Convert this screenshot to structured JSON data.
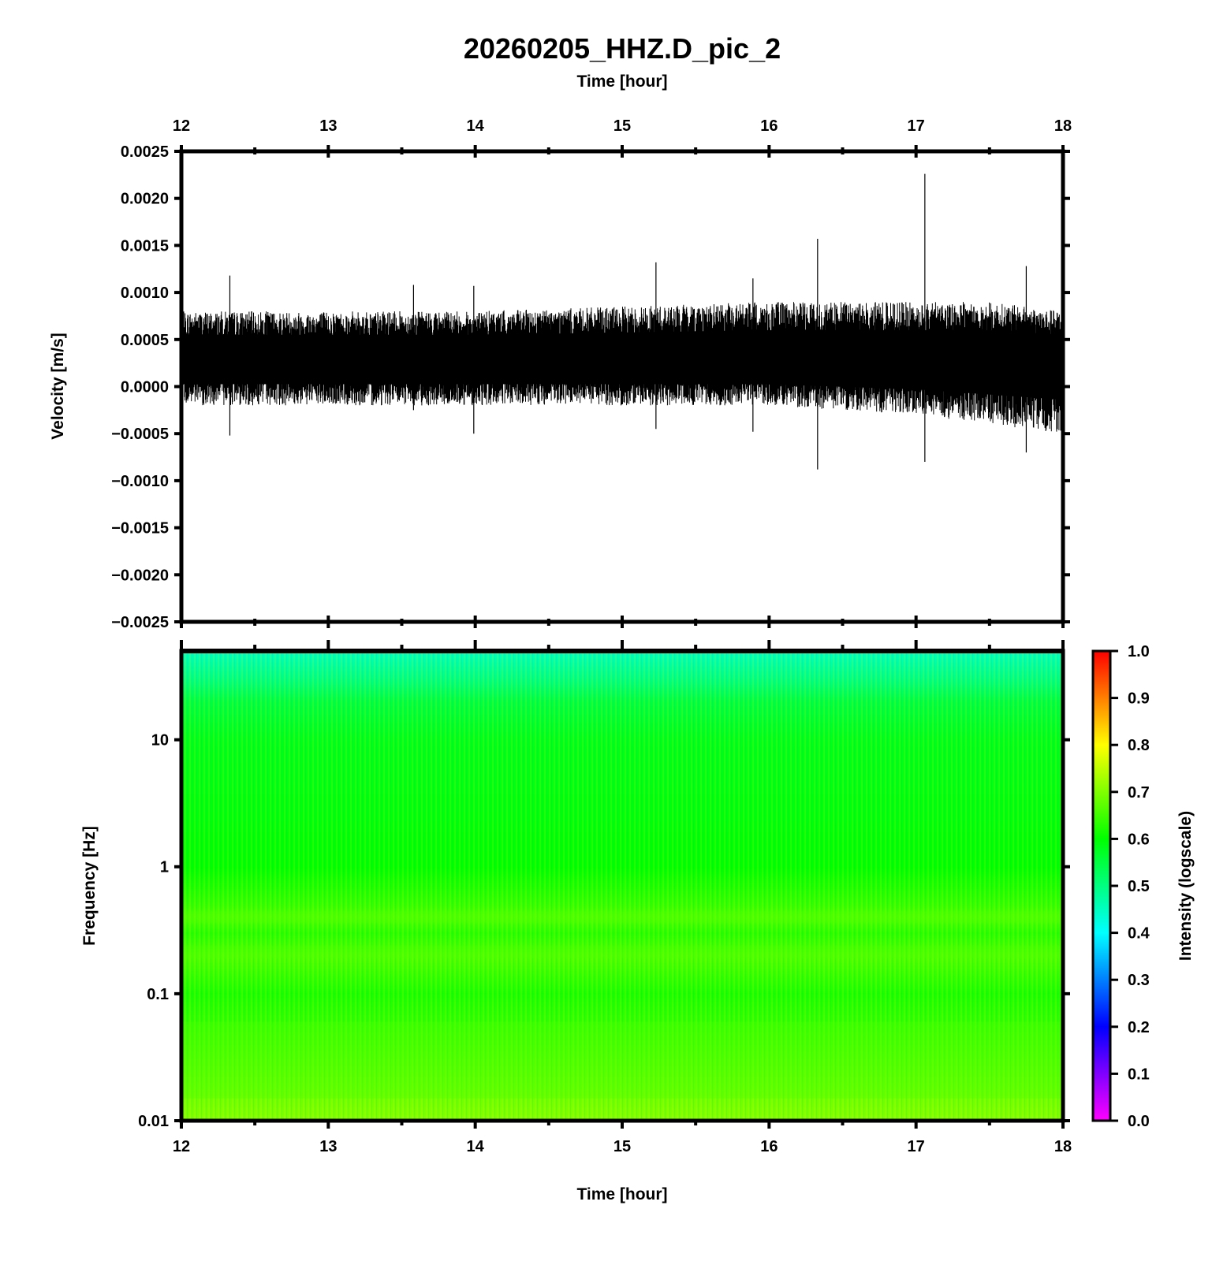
{
  "chart_data": [
    {
      "type": "line",
      "title": "20260205_HHZ.D_pic_2",
      "xlabel": "Time [hour]",
      "ylabel": "Velocity [m/s]",
      "xlim": [
        12,
        18
      ],
      "ylim": [
        -0.0025,
        0.0025
      ],
      "x_ticks": [
        "12",
        "13",
        "14",
        "15",
        "16",
        "17",
        "18"
      ],
      "y_ticks": [
        "0.0025",
        "0.0020",
        "0.0015",
        "0.0010",
        "0.0005",
        "0.0000",
        "−0.0005",
        "−0.0010",
        "−0.0015",
        "−0.0020",
        "−0.0025"
      ],
      "trace_color": "#000000",
      "mean_offset": 0.0003,
      "noise_envelope": {
        "x": [
          12,
          13,
          14,
          15,
          16,
          17,
          17.5,
          18
        ],
        "upper": [
          0.0008,
          0.0008,
          0.0008,
          0.00085,
          0.0009,
          0.0009,
          0.0009,
          0.0008
        ],
        "lower": [
          -0.0002,
          -0.0002,
          -0.0002,
          -0.0002,
          -0.0002,
          -0.0003,
          -0.0004,
          -0.0005
        ]
      },
      "spikes": [
        {
          "x": 12.33,
          "y_max": 0.00118,
          "y_min": -0.00052
        },
        {
          "x": 13.58,
          "y_max": 0.00108,
          "y_min": -0.00025
        },
        {
          "x": 13.99,
          "y_max": 0.00107,
          "y_min": -0.0005
        },
        {
          "x": 15.23,
          "y_max": 0.00132,
          "y_min": -0.00045
        },
        {
          "x": 15.89,
          "y_max": 0.00115,
          "y_min": -0.00048
        },
        {
          "x": 16.33,
          "y_max": 0.00157,
          "y_min": -0.00088
        },
        {
          "x": 17.06,
          "y_max": 0.00226,
          "y_min": -0.0008
        },
        {
          "x": 17.75,
          "y_max": 0.00128,
          "y_min": -0.0007
        }
      ]
    },
    {
      "type": "heatmap",
      "xlabel": "Time [hour]",
      "ylabel": "Frequency [Hz]",
      "xlim": [
        12,
        18
      ],
      "ylim": [
        0.01,
        50
      ],
      "y_scale": "log",
      "x_ticks": [
        "12",
        "13",
        "14",
        "15",
        "16",
        "17",
        "18"
      ],
      "y_ticks": [
        "10",
        "1",
        "0.1",
        "0.01"
      ],
      "colorbar": {
        "label": "Intensity (logscale)",
        "range": [
          0,
          1
        ],
        "ticks": [
          "1.0",
          "0.9",
          "0.8",
          "0.7",
          "0.6",
          "0.5",
          "0.4",
          "0.3",
          "0.2",
          "0.1",
          "0.0"
        ],
        "colors": [
          "#ff00ff",
          "#0000ff",
          "#00ffff",
          "#00ff00",
          "#ffff00",
          "#ff0000"
        ]
      },
      "intensity_profile": {
        "frequency": [
          50,
          30,
          20,
          10,
          3,
          1,
          0.5,
          0.4,
          0.3,
          0.2,
          0.1,
          0.03,
          0.01
        ],
        "intensity": [
          0.45,
          0.5,
          0.55,
          0.58,
          0.59,
          0.6,
          0.64,
          0.66,
          0.63,
          0.66,
          0.62,
          0.66,
          0.7
        ]
      }
    }
  ]
}
